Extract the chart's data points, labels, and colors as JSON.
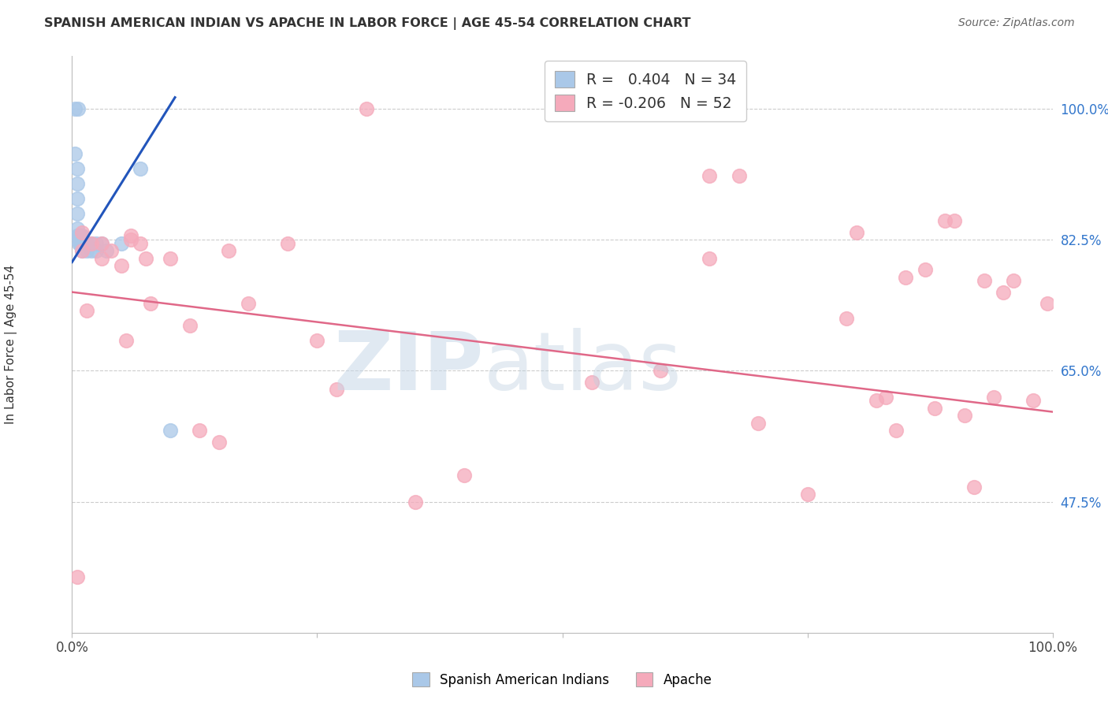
{
  "title": "SPANISH AMERICAN INDIAN VS APACHE IN LABOR FORCE | AGE 45-54 CORRELATION CHART",
  "source": "Source: ZipAtlas.com",
  "ylabel": "In Labor Force | Age 45-54",
  "xlim": [
    0.0,
    1.0
  ],
  "ylim": [
    0.3,
    1.07
  ],
  "yticks": [
    0.475,
    0.65,
    0.825,
    1.0
  ],
  "ytick_labels": [
    "47.5%",
    "65.0%",
    "82.5%",
    "100.0%"
  ],
  "xticks": [
    0.0,
    0.25,
    0.5,
    0.75,
    1.0
  ],
  "xtick_labels": [
    "0.0%",
    "",
    "",
    "",
    "100.0%"
  ],
  "blue_color": "#aac8e8",
  "pink_color": "#f5aabb",
  "blue_line_color": "#2255bb",
  "pink_line_color": "#e06888",
  "legend_r_blue": " 0.404",
  "legend_n_blue": "34",
  "legend_r_pink": "-0.206",
  "legend_n_pink": "52",
  "blue_scatter_x": [
    0.003,
    0.006,
    0.003,
    0.005,
    0.005,
    0.005,
    0.005,
    0.005,
    0.005,
    0.007,
    0.007,
    0.008,
    0.008,
    0.008,
    0.009,
    0.009,
    0.01,
    0.01,
    0.01,
    0.01,
    0.01,
    0.012,
    0.012,
    0.015,
    0.015,
    0.02,
    0.02,
    0.025,
    0.025,
    0.03,
    0.035,
    0.05,
    0.07,
    0.1
  ],
  "blue_scatter_y": [
    1.0,
    1.0,
    0.94,
    0.92,
    0.9,
    0.88,
    0.86,
    0.84,
    0.83,
    0.83,
    0.82,
    0.83,
    0.83,
    0.82,
    0.82,
    0.82,
    0.83,
    0.83,
    0.82,
    0.82,
    0.81,
    0.82,
    0.82,
    0.82,
    0.81,
    0.82,
    0.81,
    0.82,
    0.81,
    0.82,
    0.81,
    0.82,
    0.92,
    0.57
  ],
  "blue_trend_x": [
    0.0,
    0.105
  ],
  "blue_trend_y": [
    0.795,
    1.015
  ],
  "pink_scatter_x": [
    0.005,
    0.01,
    0.01,
    0.015,
    0.02,
    0.03,
    0.03,
    0.04,
    0.05,
    0.055,
    0.06,
    0.06,
    0.07,
    0.075,
    0.08,
    0.1,
    0.12,
    0.13,
    0.15,
    0.16,
    0.18,
    0.22,
    0.25,
    0.27,
    0.3,
    0.35,
    0.4,
    0.53,
    0.6,
    0.65,
    0.65,
    0.68,
    0.7,
    0.75,
    0.79,
    0.8,
    0.82,
    0.83,
    0.84,
    0.85,
    0.87,
    0.88,
    0.89,
    0.9,
    0.91,
    0.92,
    0.93,
    0.94,
    0.95,
    0.96,
    0.98,
    0.995
  ],
  "pink_scatter_y": [
    0.375,
    0.835,
    0.81,
    0.73,
    0.82,
    0.82,
    0.8,
    0.81,
    0.79,
    0.69,
    0.825,
    0.83,
    0.82,
    0.8,
    0.74,
    0.8,
    0.71,
    0.57,
    0.555,
    0.81,
    0.74,
    0.82,
    0.69,
    0.625,
    1.0,
    0.475,
    0.51,
    0.635,
    0.65,
    0.8,
    0.91,
    0.91,
    0.58,
    0.485,
    0.72,
    0.835,
    0.61,
    0.615,
    0.57,
    0.775,
    0.785,
    0.6,
    0.85,
    0.85,
    0.59,
    0.495,
    0.77,
    0.615,
    0.755,
    0.77,
    0.61,
    0.74
  ],
  "pink_trend_x": [
    0.0,
    1.0
  ],
  "pink_trend_y": [
    0.755,
    0.595
  ],
  "background_color": "#ffffff"
}
